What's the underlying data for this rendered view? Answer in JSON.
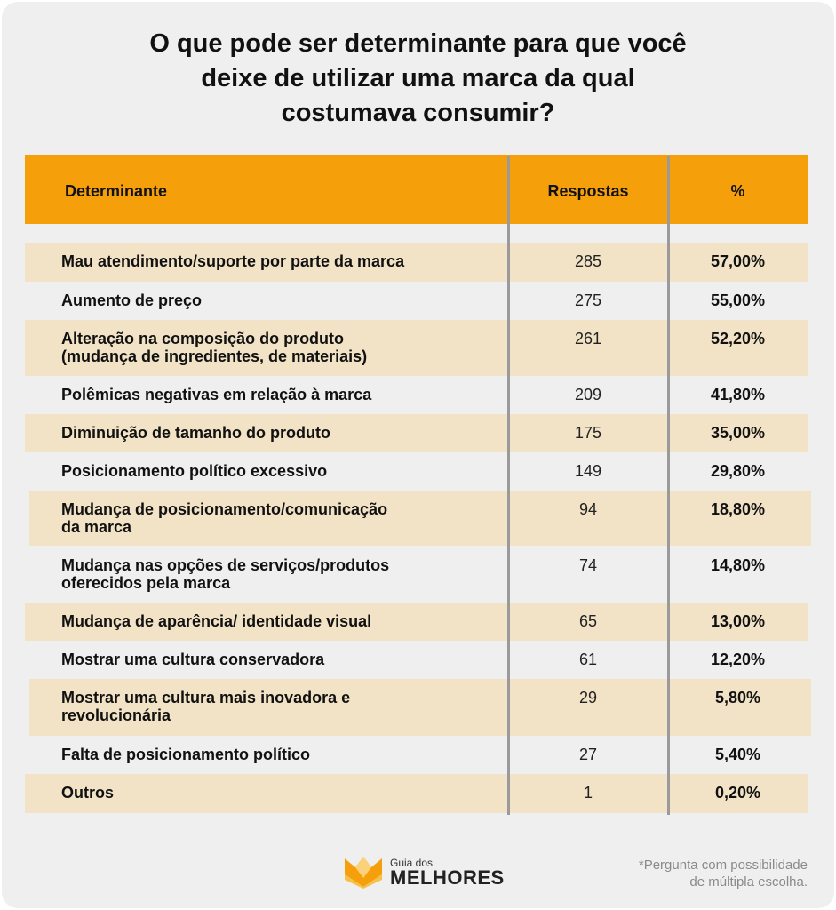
{
  "title": {
    "line1": "O que pode ser determinante para que você",
    "line2": "deixe de utilizar uma marca da qual",
    "line3": "costumava consumir?"
  },
  "table": {
    "headers": {
      "determinante": "Determinante",
      "respostas": "Respostas",
      "percent": "%"
    },
    "rows": [
      {
        "det1": "Mau atendimento/suporte por parte da marca",
        "det2": "",
        "resp": "285",
        "pct": "57,00%"
      },
      {
        "det1": "Aumento de preço",
        "det2": "",
        "resp": "275",
        "pct": "55,00%"
      },
      {
        "det1": "Alteração na composição do produto",
        "det2": "(mudança de ingredientes, de materiais)",
        "resp": "261",
        "pct": "52,20%"
      },
      {
        "det1": "Polêmicas negativas em relação à marca",
        "det2": "",
        "resp": "209",
        "pct": "41,80%"
      },
      {
        "det1": "Diminuição de tamanho do produto",
        "det2": "",
        "resp": "175",
        "pct": "35,00%"
      },
      {
        "det1": "Posicionamento político excessivo",
        "det2": "",
        "resp": "149",
        "pct": "29,80%"
      },
      {
        "det1": "Mudança de posicionamento/comunicação",
        "det2": "da marca",
        "resp": "94",
        "pct": "18,80%"
      },
      {
        "det1": "Mudança nas opções de serviços/produtos",
        "det2": "oferecidos pela marca",
        "resp": "74",
        "pct": "14,80%"
      },
      {
        "det1": "Mudança de aparência/ identidade visual",
        "det2": "",
        "resp": "65",
        "pct": "13,00%"
      },
      {
        "det1": "Mostrar uma cultura conservadora",
        "det2": "",
        "resp": "61",
        "pct": "12,20%"
      },
      {
        "det1": "Mostrar uma cultura mais inovadora e",
        "det2": "revolucionária",
        "resp": "29",
        "pct": "5,80%"
      },
      {
        "det1": "Falta de posicionamento político",
        "det2": "",
        "resp": "27",
        "pct": "5,40%"
      },
      {
        "det1": "Outros",
        "det2": "",
        "resp": "1",
        "pct": "0,20%"
      }
    ]
  },
  "logo": {
    "sub": "Guia dos",
    "main": "MELHORES"
  },
  "note": {
    "line1": "*Pergunta com possibilidade",
    "line2": "de múltipla escolha."
  },
  "colors": {
    "header": "#f5a00a",
    "shaded_row": "#f2e3c6",
    "background": "#efefef"
  }
}
